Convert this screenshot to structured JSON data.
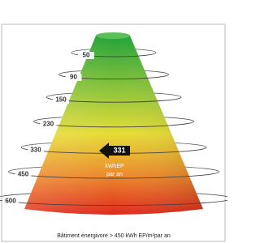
{
  "levels": [
    50,
    90,
    150,
    230,
    330,
    450,
    600
  ],
  "indicator": {
    "value": 331,
    "unit": "kWhEP",
    "period": "par an"
  },
  "caption": "Bâtiment énergivore > 450 kWh EP/m²par an"
}
